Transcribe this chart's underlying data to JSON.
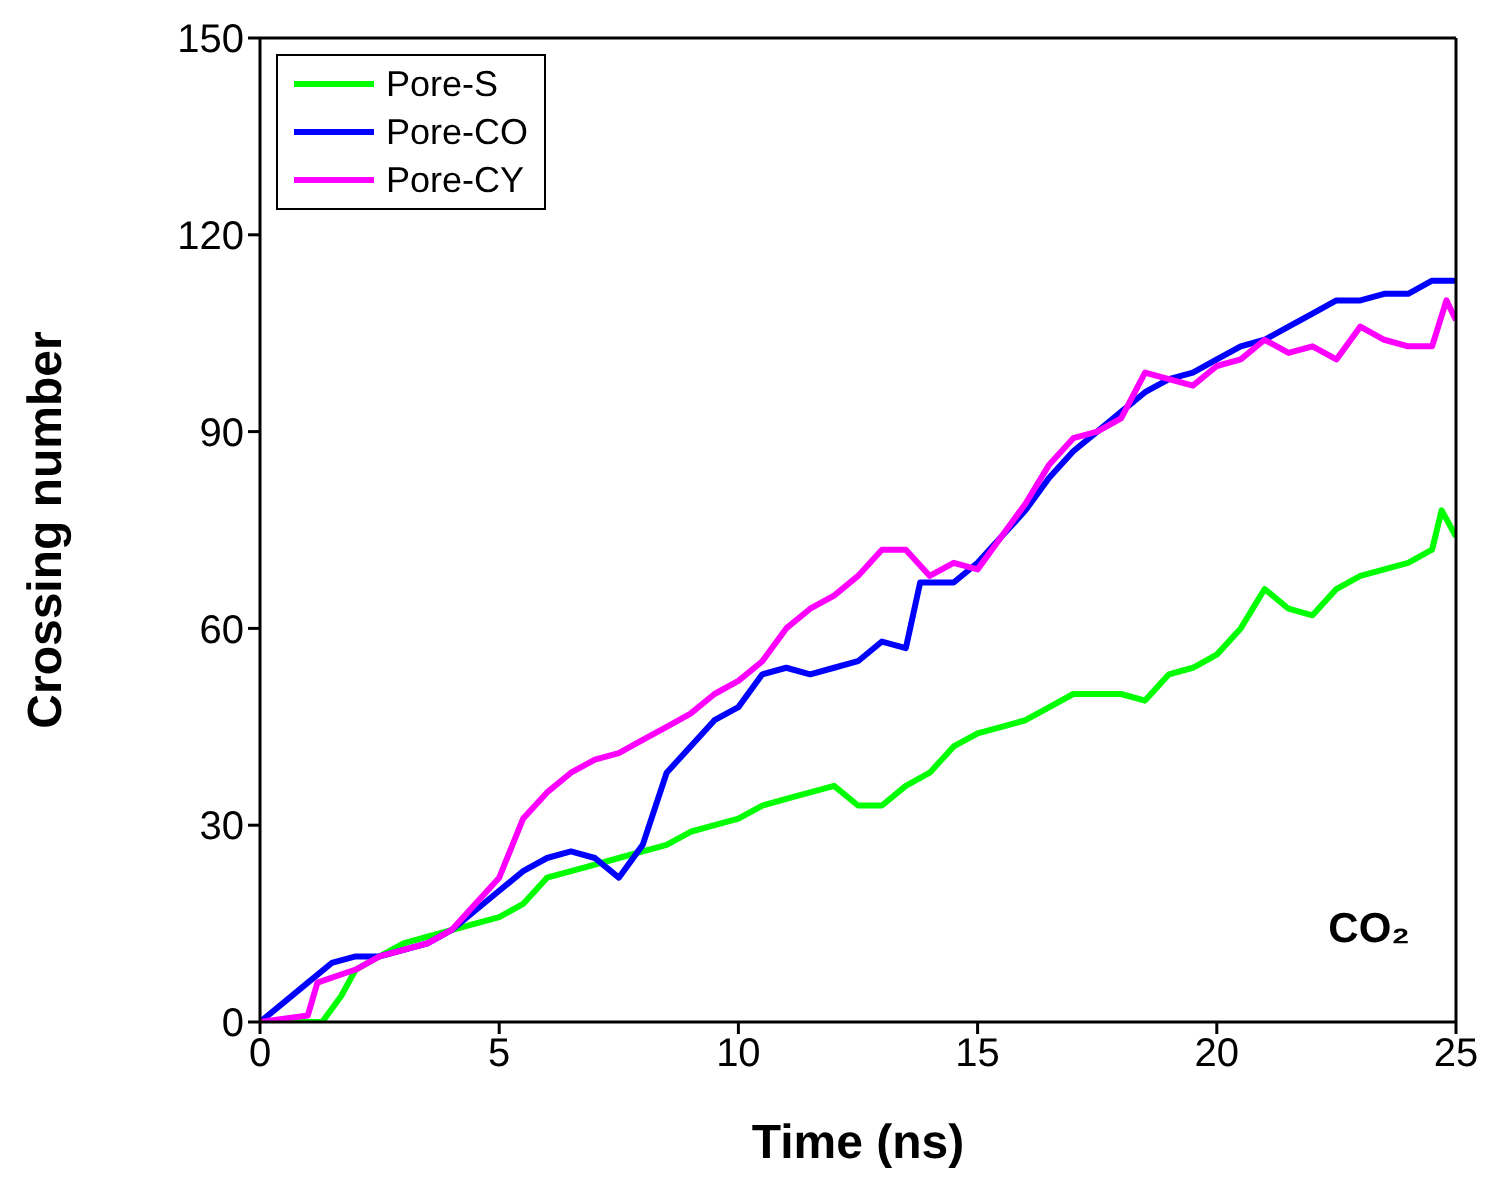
{
  "chart_data": {
    "type": "line",
    "xlabel": "Time (ns)",
    "ylabel": "Crossing number",
    "xlim": [
      0,
      25
    ],
    "xticks": [
      0,
      5,
      10,
      15,
      20,
      25
    ],
    "ylim": [
      0,
      150
    ],
    "yticks": [
      0,
      30,
      60,
      90,
      120,
      150
    ],
    "grid": false,
    "legend": "top left",
    "marker": "none",
    "line_style": "solid",
    "annotations": [
      "CO₂"
    ],
    "series": [
      {
        "name": "Pore-S",
        "color": "#00ff00",
        "x": [
          0,
          1.3,
          1.7,
          2,
          2.5,
          3,
          3.5,
          4,
          4.5,
          5,
          5.5,
          6,
          6.5,
          7,
          7.5,
          8,
          8.5,
          9,
          9.5,
          10,
          10.5,
          11,
          11.5,
          12,
          12.5,
          13,
          13.5,
          14,
          14.5,
          15,
          15.5,
          16,
          16.5,
          17,
          17.5,
          18,
          18.5,
          19,
          19.5,
          20,
          20.5,
          21,
          21.5,
          22,
          22.5,
          23,
          23.5,
          24,
          24.5,
          24.7,
          25
        ],
        "values": [
          0,
          0,
          4,
          8,
          10,
          12,
          13,
          14,
          15,
          16,
          18,
          22,
          23,
          24,
          25,
          26,
          27,
          29,
          30,
          31,
          33,
          34,
          35,
          36,
          33,
          33,
          36,
          38,
          42,
          44,
          45,
          46,
          48,
          50,
          50,
          50,
          49,
          53,
          54,
          56,
          60,
          66,
          63,
          62,
          66,
          68,
          69,
          70,
          72,
          78,
          74
        ]
      },
      {
        "name": "Pore-CO",
        "color": "#0000ff",
        "x": [
          0,
          0.5,
          1,
          1.5,
          2,
          2.5,
          3,
          3.5,
          4,
          4.5,
          5,
          5.5,
          6,
          6.5,
          7,
          7.5,
          8,
          8.5,
          9,
          9.5,
          10,
          10.5,
          11,
          11.5,
          12,
          12.5,
          13,
          13.5,
          13.8,
          14.5,
          15,
          15.5,
          16,
          16.5,
          17,
          17.5,
          18,
          18.5,
          19,
          19.5,
          20,
          20.5,
          21,
          21.5,
          22,
          22.5,
          23,
          23.5,
          24,
          24.5,
          25
        ],
        "values": [
          0,
          3,
          6,
          9,
          10,
          10,
          11,
          12,
          14,
          17,
          20,
          23,
          25,
          26,
          25,
          22,
          27,
          38,
          42,
          46,
          48,
          53,
          54,
          53,
          54,
          55,
          58,
          57,
          67,
          67,
          70,
          74,
          78,
          83,
          87,
          90,
          93,
          96,
          98,
          99,
          101,
          103,
          104,
          106,
          108,
          110,
          110,
          111,
          111,
          113,
          113
        ]
      },
      {
        "name": "Pore-CY",
        "color": "#ff00ff",
        "x": [
          0,
          1,
          1.2,
          2,
          2.5,
          3,
          3.5,
          4,
          4.5,
          5,
          5.5,
          6,
          6.5,
          7,
          7.5,
          8,
          8.5,
          9,
          9.5,
          10,
          10.5,
          11,
          11.5,
          12,
          12.5,
          13,
          13.5,
          14,
          14.5,
          15,
          15.5,
          16,
          16.5,
          17,
          17.5,
          18,
          18.5,
          19,
          19.5,
          20,
          20.5,
          21,
          21.5,
          22,
          22.5,
          23,
          23.5,
          24,
          24.5,
          24.8,
          25
        ],
        "values": [
          0,
          1,
          6,
          8,
          10,
          11,
          12,
          14,
          18,
          22,
          31,
          35,
          38,
          40,
          41,
          43,
          45,
          47,
          50,
          52,
          55,
          60,
          63,
          65,
          68,
          72,
          72,
          68,
          70,
          69,
          74,
          79,
          85,
          89,
          90,
          92,
          99,
          98,
          97,
          100,
          101,
          104,
          102,
          103,
          101,
          106,
          104,
          103,
          103,
          110,
          107
        ]
      }
    ]
  }
}
